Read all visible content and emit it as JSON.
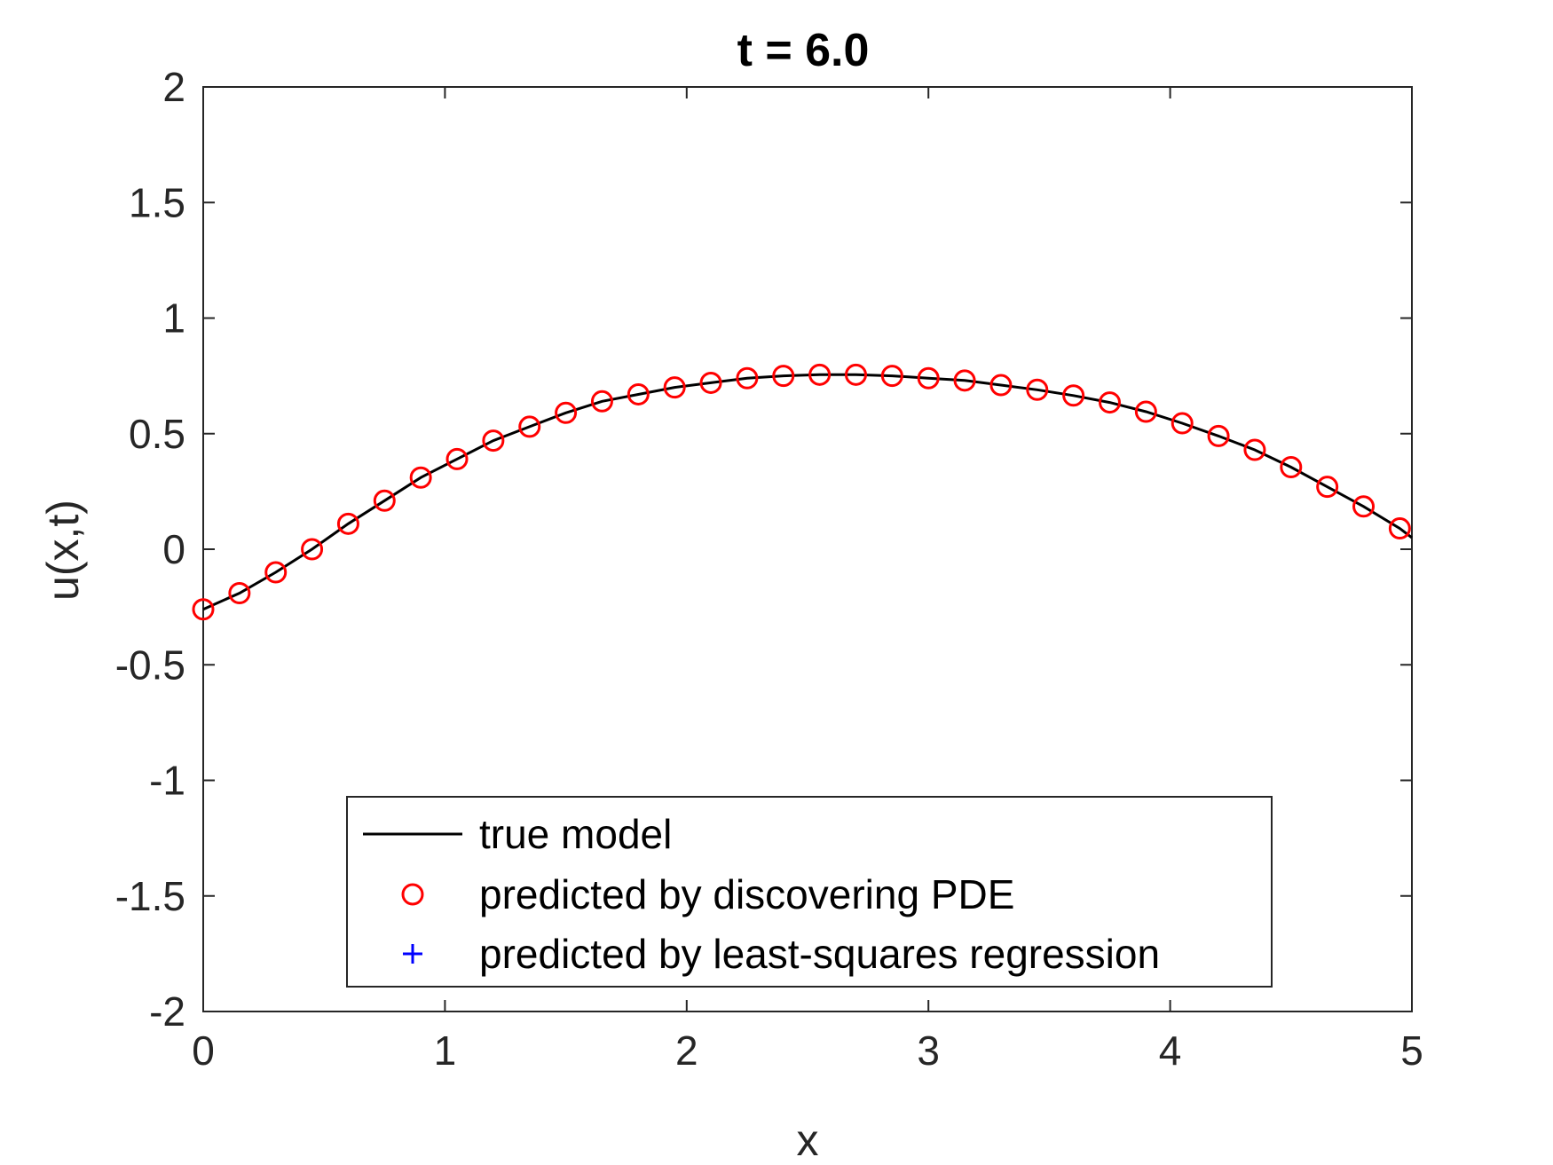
{
  "chart_data": {
    "type": "line",
    "title": "t = 6.0",
    "xlabel": "x",
    "ylabel": "u(x,t)",
    "xlim": [
      0,
      5
    ],
    "ylim": [
      -2,
      2
    ],
    "xticks": [
      0,
      1,
      2,
      3,
      4,
      5
    ],
    "xtick_labels": [
      "0",
      "1",
      "2",
      "3",
      "4",
      "5"
    ],
    "yticks": [
      -2,
      -1.5,
      -1,
      -0.5,
      0,
      0.5,
      1,
      1.5,
      2
    ],
    "ytick_labels": [
      "-2",
      "-1.5",
      "-1",
      "-0.5",
      "0",
      "0.5",
      "1",
      "1.5",
      "2"
    ],
    "grid": false,
    "legend_position": "bottom-center",
    "series": [
      {
        "name": "true model",
        "style": "line",
        "color": "#000000",
        "x": [
          0,
          0.15,
          0.3,
          0.45,
          0.6,
          0.75,
          0.9,
          1.05,
          1.2,
          1.35,
          1.5,
          1.65,
          1.8,
          1.95,
          2.1,
          2.25,
          2.4,
          2.55,
          2.7,
          2.85,
          3.0,
          3.15,
          3.3,
          3.45,
          3.6,
          3.75,
          3.9,
          4.05,
          4.2,
          4.35,
          4.5,
          4.65,
          4.8,
          4.95,
          5.0
        ],
        "y": [
          -0.26,
          -0.19,
          -0.1,
          0.0,
          0.11,
          0.21,
          0.31,
          0.39,
          0.47,
          0.53,
          0.59,
          0.64,
          0.67,
          0.7,
          0.72,
          0.74,
          0.75,
          0.755,
          0.755,
          0.75,
          0.74,
          0.73,
          0.71,
          0.69,
          0.665,
          0.635,
          0.595,
          0.545,
          0.49,
          0.43,
          0.355,
          0.27,
          0.185,
          0.09,
          0.05
        ]
      },
      {
        "name": "predicted by discovering PDE",
        "style": "marker-circle",
        "color": "#ff0000",
        "x": [
          0,
          0.15,
          0.3,
          0.45,
          0.6,
          0.75,
          0.9,
          1.05,
          1.2,
          1.35,
          1.5,
          1.65,
          1.8,
          1.95,
          2.1,
          2.25,
          2.4,
          2.55,
          2.7,
          2.85,
          3.0,
          3.15,
          3.3,
          3.45,
          3.6,
          3.75,
          3.9,
          4.05,
          4.2,
          4.35,
          4.5,
          4.65,
          4.8,
          4.95
        ],
        "y": [
          -0.26,
          -0.19,
          -0.1,
          0.0,
          0.11,
          0.21,
          0.31,
          0.39,
          0.47,
          0.53,
          0.59,
          0.64,
          0.67,
          0.7,
          0.72,
          0.74,
          0.75,
          0.755,
          0.755,
          0.75,
          0.74,
          0.73,
          0.71,
          0.69,
          0.665,
          0.635,
          0.595,
          0.545,
          0.49,
          0.43,
          0.355,
          0.27,
          0.185,
          0.09
        ]
      },
      {
        "name": "predicted by least-squares regression",
        "style": "marker-plus",
        "color": "#0000ff",
        "x": [],
        "y": []
      }
    ]
  }
}
